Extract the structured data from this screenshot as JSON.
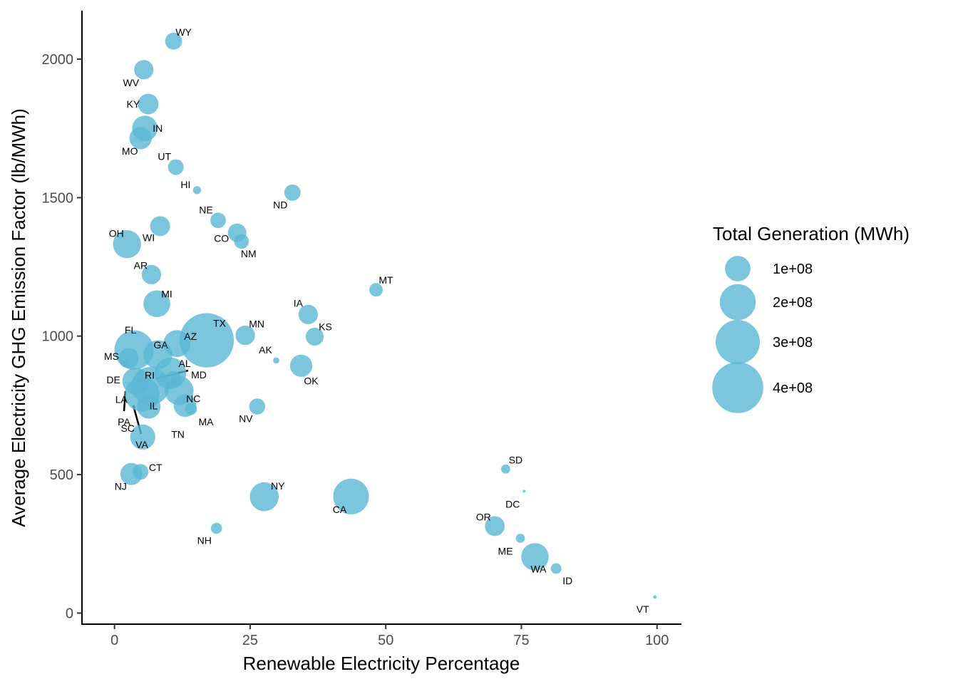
{
  "chart_data": {
    "type": "scatter",
    "xlabel": "Renewable Electricity Percentage",
    "ylabel": "Average Electricity GHG Emission Factor (lb/MWh)",
    "xlim": [
      -6,
      104.5
    ],
    "ylim": [
      -40,
      2175
    ],
    "xticks": [
      0,
      25,
      50,
      75,
      100
    ],
    "yticks": [
      0,
      500,
      1000,
      1500,
      2000
    ],
    "grid": false,
    "legend": {
      "title": "Total Generation (MWh)",
      "position": "right",
      "entries": [
        {
          "label": "1e+08",
          "value": 100000000
        },
        {
          "label": "2e+08",
          "value": 200000000
        },
        {
          "label": "3e+08",
          "value": 300000000
        },
        {
          "label": "4e+08",
          "value": 400000000
        }
      ]
    },
    "colors": {
      "point": "#5bb8d5"
    },
    "points": [
      {
        "label": "WY",
        "x": 10.9,
        "y": 2065,
        "size": 44000000
      },
      {
        "label": "WV",
        "x": 5.4,
        "y": 1962,
        "size": 58000000
      },
      {
        "label": "KY",
        "x": 6.2,
        "y": 1838,
        "size": 66000000
      },
      {
        "label": "IN",
        "x": 5.6,
        "y": 1750,
        "size": 100000000
      },
      {
        "label": "MO",
        "x": 4.8,
        "y": 1715,
        "size": 77000000
      },
      {
        "label": "UT",
        "x": 11.3,
        "y": 1610,
        "size": 38000000
      },
      {
        "label": "HI",
        "x": 15.2,
        "y": 1527,
        "size": 10000000
      },
      {
        "label": "ND",
        "x": 32.8,
        "y": 1518,
        "size": 41000000
      },
      {
        "label": "NE",
        "x": 19.1,
        "y": 1418,
        "size": 37000000
      },
      {
        "label": "WI",
        "x": 8.4,
        "y": 1397,
        "size": 61000000
      },
      {
        "label": "CO",
        "x": 22.6,
        "y": 1373,
        "size": 53000000
      },
      {
        "label": "NM",
        "x": 23.4,
        "y": 1342,
        "size": 33000000
      },
      {
        "label": "OH",
        "x": 2.3,
        "y": 1332,
        "size": 121000000
      },
      {
        "label": "AR",
        "x": 6.8,
        "y": 1222,
        "size": 58000000
      },
      {
        "label": "MT",
        "x": 48.2,
        "y": 1167,
        "size": 28000000
      },
      {
        "label": "MI",
        "x": 7.8,
        "y": 1117,
        "size": 110000000
      },
      {
        "label": "IA",
        "x": 35.7,
        "y": 1078,
        "size": 58000000
      },
      {
        "label": "MN",
        "x": 24.1,
        "y": 1003,
        "size": 59000000
      },
      {
        "label": "KS",
        "x": 36.9,
        "y": 998,
        "size": 50000000
      },
      {
        "label": "TX",
        "x": 17.0,
        "y": 985,
        "size": 454000000
      },
      {
        "label": "AZ",
        "x": 11.5,
        "y": 973,
        "size": 112000000
      },
      {
        "label": "FL",
        "x": 3.6,
        "y": 950,
        "size": 238000000
      },
      {
        "label": "GA",
        "x": 8.0,
        "y": 933,
        "size": 129000000
      },
      {
        "label": "MS",
        "x": 2.6,
        "y": 920,
        "size": 63000000
      },
      {
        "label": "AK",
        "x": 29.8,
        "y": 912,
        "size": 6000000
      },
      {
        "label": "OK",
        "x": 34.4,
        "y": 893,
        "size": 76000000
      },
      {
        "label": "DE",
        "x": 1.9,
        "y": 902,
        "size": 8000000
      },
      {
        "label": "RI",
        "x": 4.9,
        "y": 867,
        "size": 8000000
      },
      {
        "label": "AL",
        "x": 10.3,
        "y": 866,
        "size": 152000000
      },
      {
        "label": "MD",
        "x": 10.8,
        "y": 846,
        "size": 38000000
      },
      {
        "label": "LA",
        "x": 3.9,
        "y": 838,
        "size": 108000000
      },
      {
        "label": "NC",
        "x": 11.9,
        "y": 803,
        "size": 129000000
      },
      {
        "label": "IL",
        "x": 5.1,
        "y": 790,
        "size": 185000000
      },
      {
        "label": "PA",
        "x": 6.6,
        "y": 820,
        "size": 222000000
      },
      {
        "label": "TN",
        "x": 13.0,
        "y": 749,
        "size": 79000000
      },
      {
        "label": "MA",
        "x": 14.1,
        "y": 737,
        "size": 22000000
      },
      {
        "label": "NV",
        "x": 26.3,
        "y": 746,
        "size": 40000000
      },
      {
        "label": "VA",
        "x": 6.3,
        "y": 745,
        "size": 86000000
      },
      {
        "label": "SC",
        "x": 5.2,
        "y": 636,
        "size": 97000000
      },
      {
        "label": "SD",
        "x": 72.1,
        "y": 520,
        "size": 13000000
      },
      {
        "label": "CT",
        "x": 4.8,
        "y": 510,
        "size": 38000000
      },
      {
        "label": "NJ",
        "x": 3.1,
        "y": 502,
        "size": 75000000
      },
      {
        "label": "DC",
        "x": 75.5,
        "y": 440,
        "size": 100000
      },
      {
        "label": "CA",
        "x": 43.6,
        "y": 421,
        "size": 197000000
      },
      {
        "label": "NY",
        "x": 27.6,
        "y": 420,
        "size": 129000000
      },
      {
        "label": "OR",
        "x": 70.1,
        "y": 314,
        "size": 60000000
      },
      {
        "label": "NH",
        "x": 18.8,
        "y": 306,
        "size": 19000000
      },
      {
        "label": "ME",
        "x": 74.8,
        "y": 270,
        "size": 13000000
      },
      {
        "label": "WA",
        "x": 77.5,
        "y": 203,
        "size": 116000000
      },
      {
        "label": "ID",
        "x": 81.4,
        "y": 161,
        "size": 17000000
      },
      {
        "label": "VT",
        "x": 99.6,
        "y": 58,
        "size": 2000000
      }
    ]
  }
}
